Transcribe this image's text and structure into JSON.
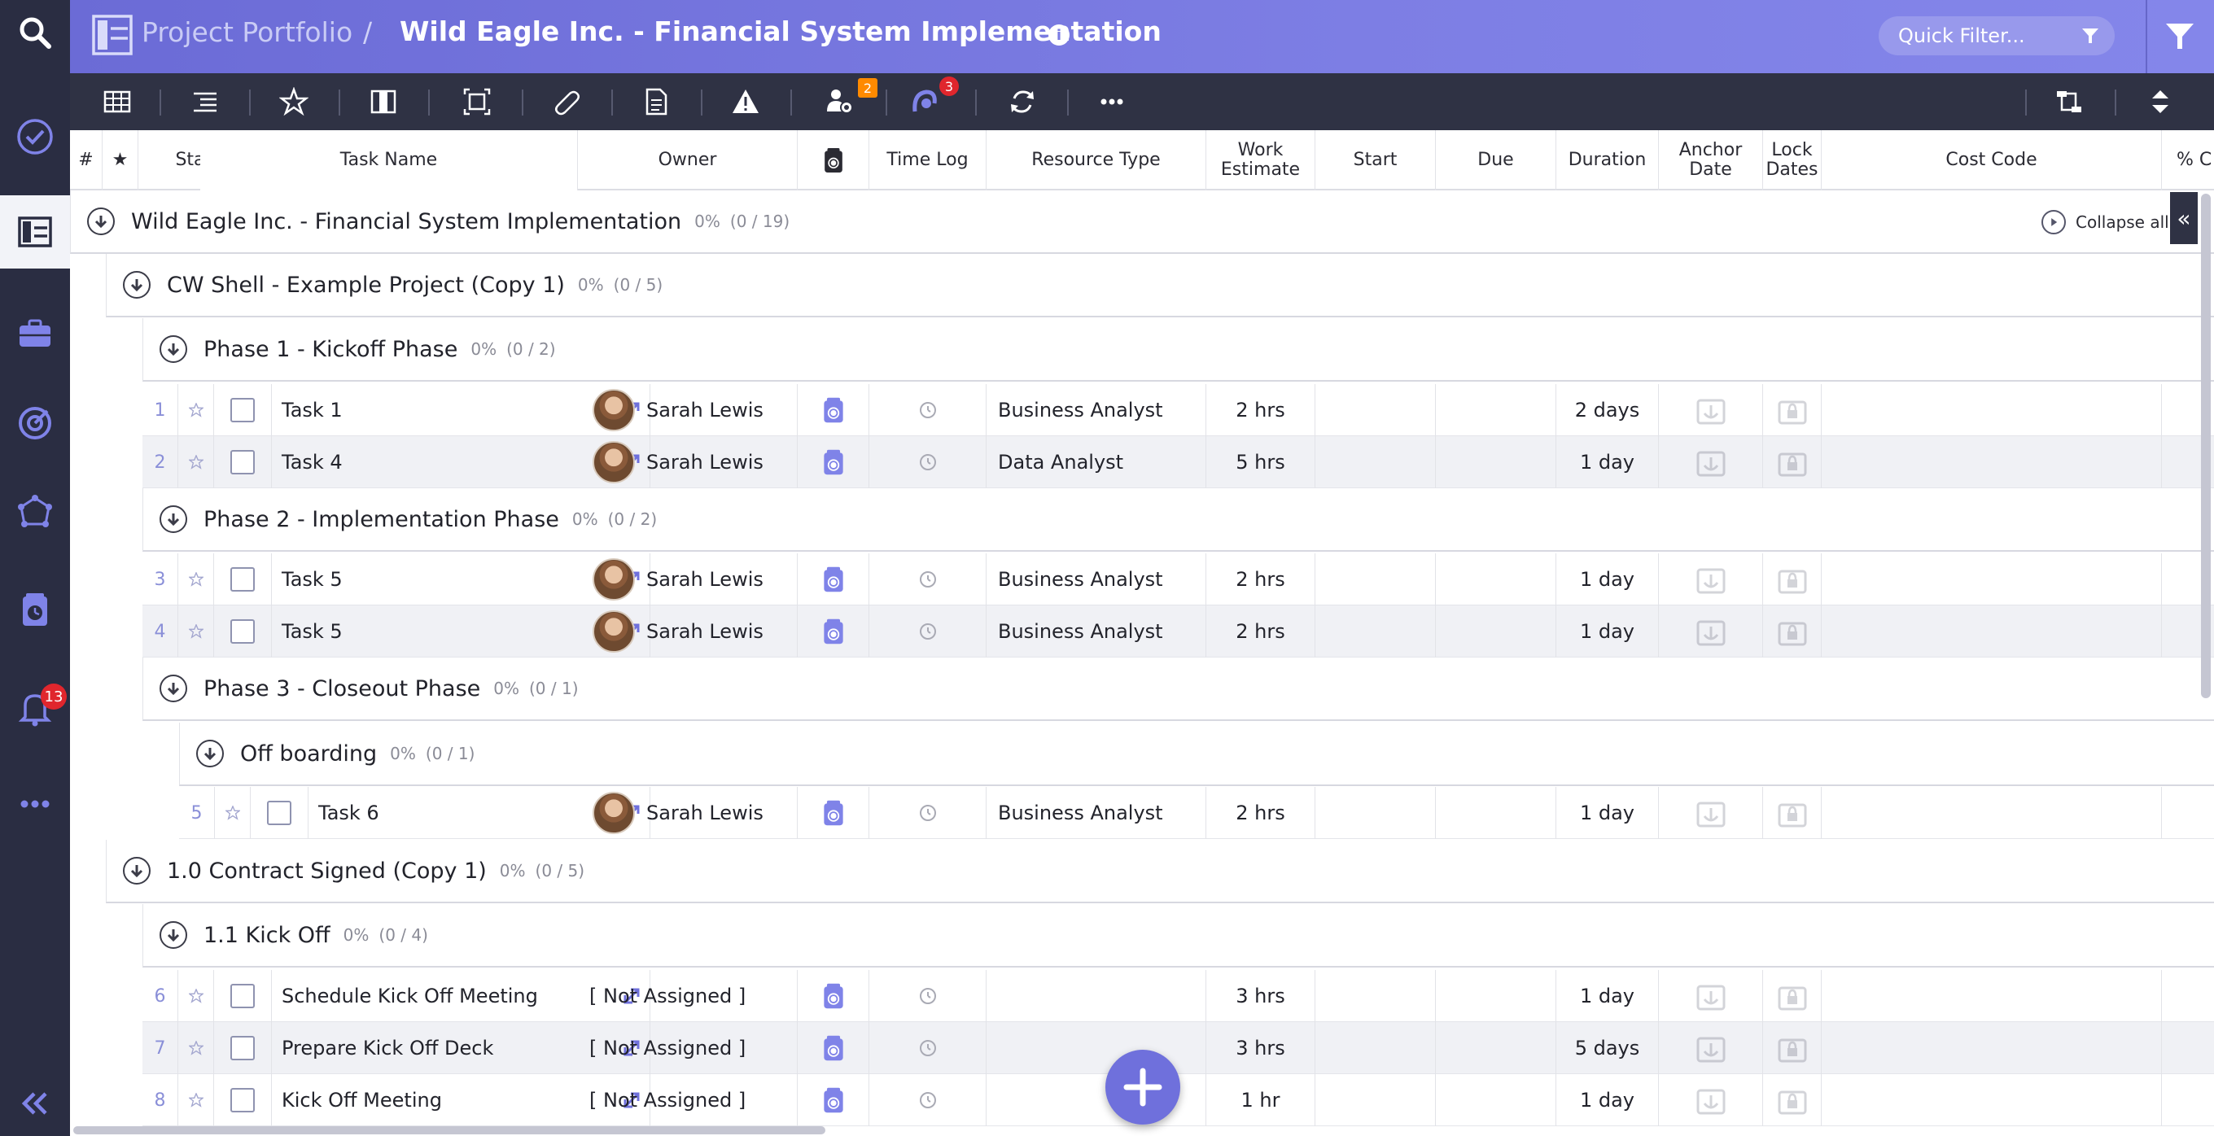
{
  "breadcrumb": {
    "root": "Project Portfolio",
    "separator": "/",
    "title": "Wild Eagle Inc. - Financial System Implementation",
    "info_icon": "info-icon"
  },
  "quick_filter": {
    "label": "Quick Filter..."
  },
  "sidebar": {
    "icons": [
      "search-icon",
      "check-circle-icon",
      "portfolio-icon",
      "briefcase-icon",
      "dashboard-icon",
      "network-icon",
      "timesheet-icon",
      "bell-icon",
      "more-icon",
      "collapse-sidebar-icon"
    ],
    "notifications_badge": "13"
  },
  "toolbar": {
    "icons": [
      "grid-view-icon",
      "list-view-icon",
      "star-icon",
      "columns-icon",
      "fit-icon",
      "attachment-icon",
      "document-icon",
      "warning-icon",
      "team-icon",
      "sync-users-icon",
      "refresh-icon",
      "more-icon",
      "dependency-icon",
      "expand-collapse-icon"
    ],
    "team_badge": "2",
    "sync_badge": "3"
  },
  "columns": {
    "num": "#",
    "star": "★",
    "status": "Status",
    "task_name": "Task Name",
    "owner": "Owner",
    "time_log": "Time Log",
    "resource_type": "Resource Type",
    "work_estimate_1": "Work",
    "work_estimate_2": "Estimate",
    "start": "Start",
    "due": "Due",
    "duration": "Duration",
    "anchor_1": "Anchor",
    "anchor_2": "Date",
    "lock_1": "Lock",
    "lock_2": "Dates",
    "cost_code": "Cost Code",
    "pct": "% C"
  },
  "collapse_all": "Collapse all",
  "groups": {
    "root": {
      "name": "Wild Eagle Inc. - Financial System Implementation",
      "pct": "0%",
      "count": "(0 / 19)"
    },
    "cw_shell": {
      "name": "CW Shell - Example Project (Copy 1)",
      "pct": "0%",
      "count": "(0 / 5)"
    },
    "phase1": {
      "name": "Phase 1 - Kickoff Phase",
      "pct": "0%",
      "count": "(0 / 2)"
    },
    "phase2": {
      "name": "Phase 2 - Implementation Phase",
      "pct": "0%",
      "count": "(0 / 2)"
    },
    "phase3": {
      "name": "Phase 3 - Closeout Phase",
      "pct": "0%",
      "count": "(0 / 1)"
    },
    "offboarding": {
      "name": "Off boarding",
      "pct": "0%",
      "count": "(0 / 1)"
    },
    "contract": {
      "name": "1.0 Contract Signed (Copy 1)",
      "pct": "0%",
      "count": "(0 / 5)"
    },
    "kickoff": {
      "name": "1.1 Kick Off",
      "pct": "0%",
      "count": "(0 / 4)"
    }
  },
  "tasks": [
    {
      "num": "1",
      "name": "Task 1",
      "owner": "Sarah Lewis",
      "resource": "Business Analyst",
      "work": "2 hrs",
      "start": "",
      "due": "",
      "duration": "2 days"
    },
    {
      "num": "2",
      "name": "Task 4",
      "owner": "Sarah Lewis",
      "resource": "Data Analyst",
      "work": "5 hrs",
      "start": "",
      "due": "",
      "duration": "1 day"
    },
    {
      "num": "3",
      "name": "Task 5",
      "owner": "Sarah Lewis",
      "resource": "Business Analyst",
      "work": "2 hrs",
      "start": "",
      "due": "",
      "duration": "1 day"
    },
    {
      "num": "4",
      "name": "Task 5",
      "owner": "Sarah Lewis",
      "resource": "Business Analyst",
      "work": "2 hrs",
      "start": "",
      "due": "",
      "duration": "1 day"
    },
    {
      "num": "5",
      "name": "Task 6",
      "owner": "Sarah Lewis",
      "resource": "Business Analyst",
      "work": "2 hrs",
      "start": "",
      "due": "",
      "duration": "1 day"
    },
    {
      "num": "6",
      "name": "Schedule Kick Off Meeting",
      "owner": "[ Not Assigned ]",
      "resource": "",
      "work": "3 hrs",
      "start": "",
      "due": "",
      "duration": "1 day"
    },
    {
      "num": "7",
      "name": "Prepare Kick Off Deck",
      "owner": "[ Not Assigned ]",
      "resource": "",
      "work": "3 hrs",
      "start": "",
      "due": "",
      "duration": "5 days"
    },
    {
      "num": "8",
      "name": "Kick Off Meeting",
      "owner": "[ Not Assigned ]",
      "resource": "",
      "work": "1 hr",
      "start": "",
      "due": "",
      "duration": "1 day"
    }
  ],
  "fab": {
    "icon": "add-icon"
  },
  "colors": {
    "accent": "#6f70dc",
    "header": "#7d7ee4",
    "sidebar": "#2a2d42",
    "toolbar": "#2f3244",
    "badge": "#e0262d"
  }
}
